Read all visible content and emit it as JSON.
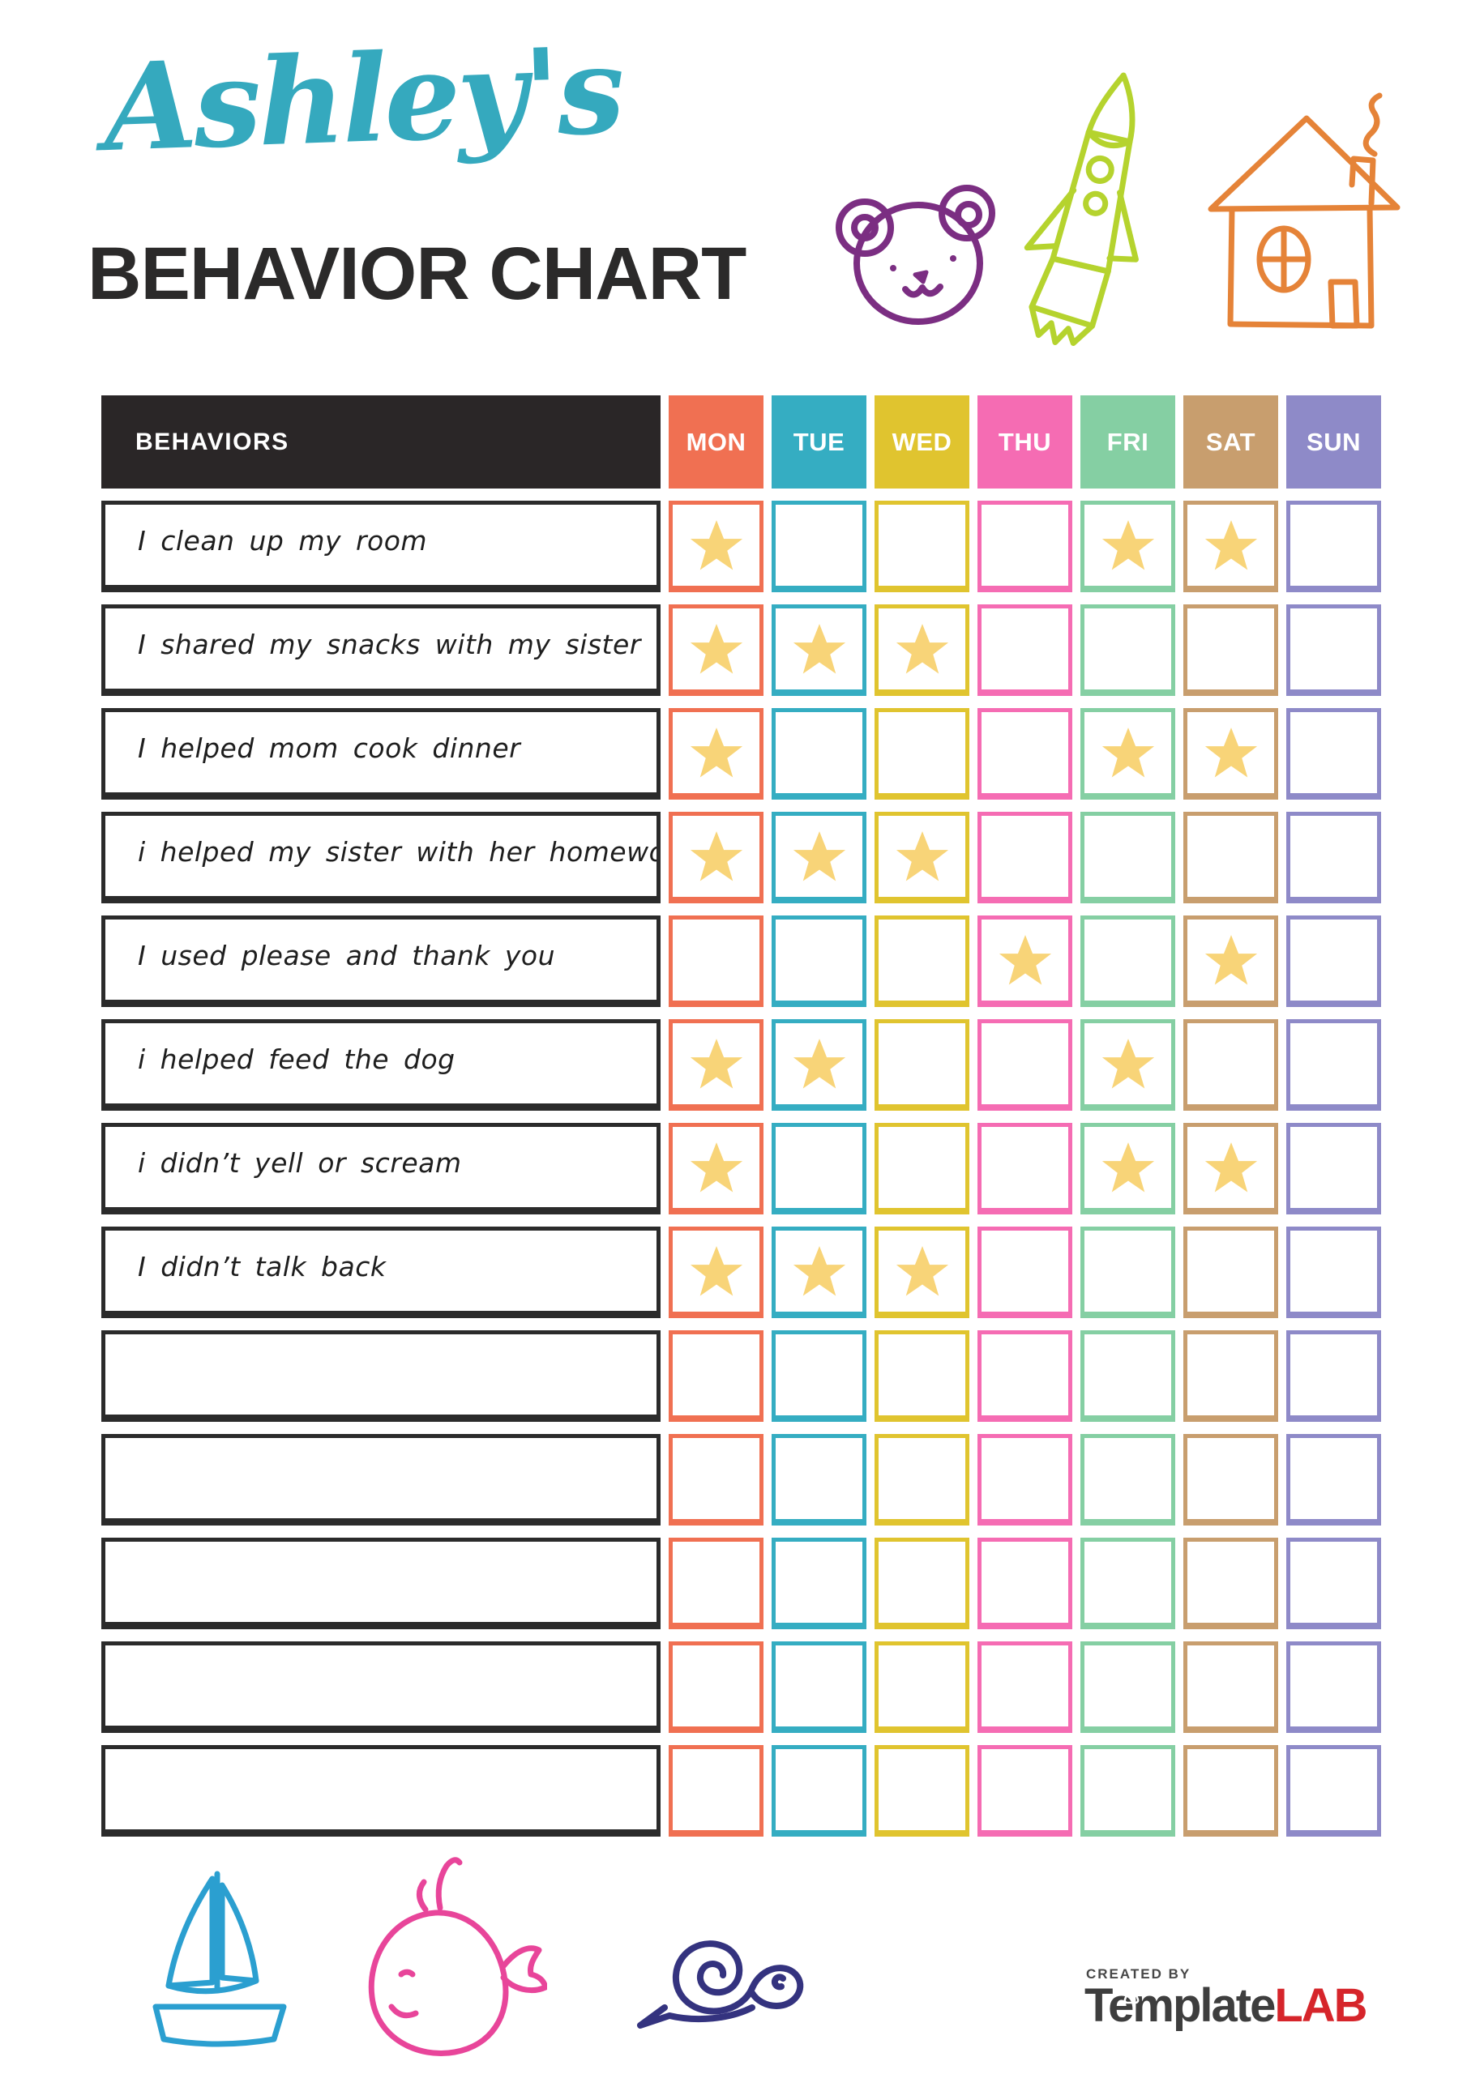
{
  "header": {
    "script_title": "Ashley's",
    "main_title": "BEHAVIOR CHART"
  },
  "colors": {
    "title_accent": "#35A9BE",
    "header_dark": "#2A2627",
    "star": "#F8D478",
    "bear": "#7B2E82",
    "rocket": "#B5D32E",
    "house": "#E58338",
    "boat": "#2B9FD0",
    "whale": "#E8459A",
    "snail": "#34337F",
    "brand_dark": "#3E3E3E",
    "brand_red": "#D6252B"
  },
  "table": {
    "behaviors_header": "BEHAVIORS",
    "days": [
      {
        "label": "MON",
        "color": "#F07052"
      },
      {
        "label": "TUE",
        "color": "#35ADC2"
      },
      {
        "label": "WED",
        "color": "#E0C42F"
      },
      {
        "label": "THU",
        "color": "#F56CB3"
      },
      {
        "label": "FRI",
        "color": "#85CFA3"
      },
      {
        "label": "SAT",
        "color": "#C89E6E"
      },
      {
        "label": "SUN",
        "color": "#8E8AC8"
      }
    ],
    "rows": [
      {
        "behavior": "I clean up my room",
        "stars": [
          "MON",
          "FRI",
          "SAT"
        ]
      },
      {
        "behavior": "I shared my snacks with my sister",
        "stars": [
          "MON",
          "TUE",
          "WED"
        ]
      },
      {
        "behavior": "I helped mom cook dinner",
        "stars": [
          "MON",
          "FRI",
          "SAT"
        ]
      },
      {
        "behavior": "i helped my sister with her homework",
        "stars": [
          "MON",
          "TUE",
          "WED"
        ]
      },
      {
        "behavior": "I used please and thank you",
        "stars": [
          "THU",
          "SAT"
        ]
      },
      {
        "behavior": "i helped feed the dog",
        "stars": [
          "MON",
          "TUE",
          "FRI"
        ]
      },
      {
        "behavior": "i didn’t yell or scream",
        "stars": [
          "MON",
          "FRI",
          "SAT"
        ]
      },
      {
        "behavior": "I didn’t talk back",
        "stars": [
          "MON",
          "TUE",
          "WED"
        ]
      },
      {
        "behavior": "",
        "stars": []
      },
      {
        "behavior": "",
        "stars": []
      },
      {
        "behavior": "",
        "stars": []
      },
      {
        "behavior": "",
        "stars": []
      },
      {
        "behavior": "",
        "stars": []
      }
    ]
  },
  "footer": {
    "created_by": "CREATED BY",
    "brand_name": "Template",
    "brand_suffix": "LAB"
  }
}
